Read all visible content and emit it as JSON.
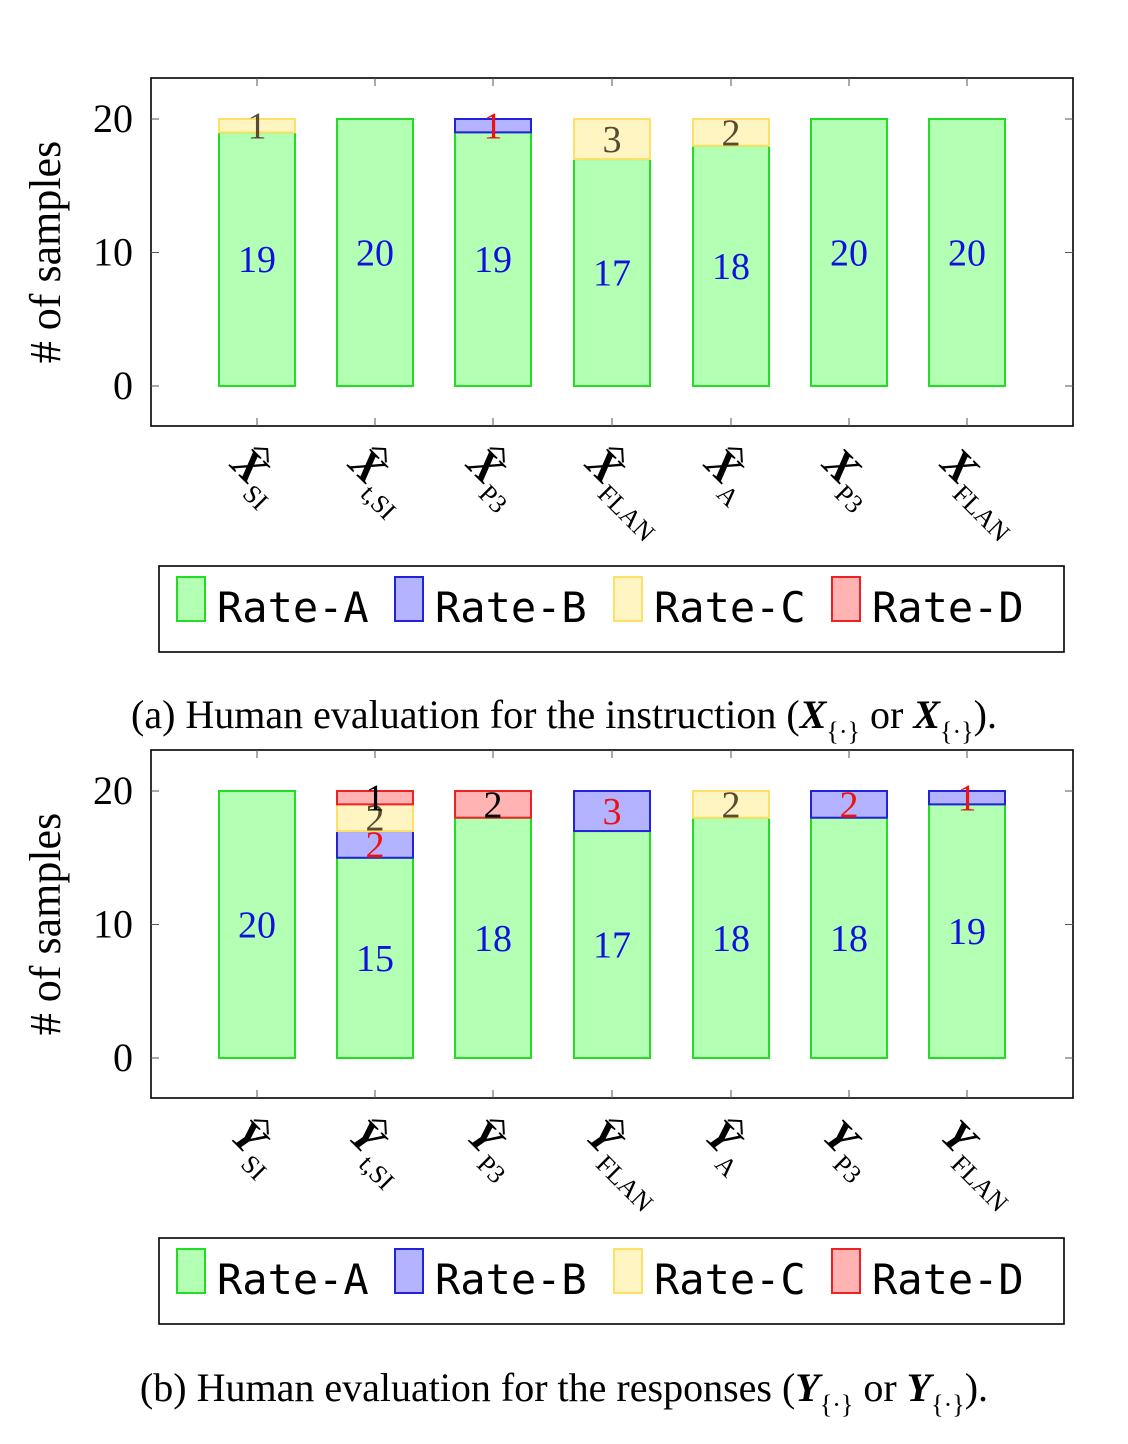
{
  "chart_data": [
    {
      "type": "bar",
      "stacked": true,
      "ylabel": "# of samples",
      "yticks": [
        0,
        10,
        20
      ],
      "ylim": [
        -3,
        23
      ],
      "categories": [
        {
          "base": "X",
          "hat": true,
          "sub": "SI"
        },
        {
          "base": "X",
          "hat": true,
          "sub": "t,SI"
        },
        {
          "base": "X",
          "hat": true,
          "sub": "P3"
        },
        {
          "base": "X",
          "hat": true,
          "sub": "FLAN"
        },
        {
          "base": "X",
          "hat": true,
          "sub": "A"
        },
        {
          "base": "X",
          "hat": false,
          "sub": "P3"
        },
        {
          "base": "X",
          "hat": false,
          "sub": "FLAN"
        }
      ],
      "series": [
        {
          "name": "Rate-A",
          "values": [
            19,
            20,
            19,
            17,
            18,
            20,
            20
          ]
        },
        {
          "name": "Rate-B",
          "values": [
            0,
            0,
            1,
            0,
            0,
            0,
            0
          ]
        },
        {
          "name": "Rate-C",
          "values": [
            1,
            0,
            0,
            3,
            2,
            0,
            0
          ]
        },
        {
          "name": "Rate-D",
          "values": [
            0,
            0,
            0,
            0,
            0,
            0,
            0
          ]
        }
      ],
      "legend_position": "below",
      "grid": false,
      "caption": {
        "prefix": "(a) Human evaluation for the instruction (",
        "var": "X",
        "sub": "{·}",
        "mid": " or ",
        "var2": "X",
        "sub2": "{·}",
        "suffix": ")."
      }
    },
    {
      "type": "bar",
      "stacked": true,
      "ylabel": "# of samples",
      "yticks": [
        0,
        10,
        20
      ],
      "ylim": [
        -3,
        23
      ],
      "categories": [
        {
          "base": "Y",
          "hat": true,
          "sub": "SI"
        },
        {
          "base": "Y",
          "hat": true,
          "sub": "t,SI"
        },
        {
          "base": "Y",
          "hat": true,
          "sub": "P3"
        },
        {
          "base": "Y",
          "hat": true,
          "sub": "FLAN"
        },
        {
          "base": "Y",
          "hat": true,
          "sub": "A"
        },
        {
          "base": "Y",
          "hat": false,
          "sub": "P3"
        },
        {
          "base": "Y",
          "hat": false,
          "sub": "FLAN"
        }
      ],
      "series": [
        {
          "name": "Rate-A",
          "values": [
            20,
            15,
            18,
            17,
            18,
            18,
            19
          ]
        },
        {
          "name": "Rate-B",
          "values": [
            0,
            2,
            0,
            3,
            0,
            2,
            1
          ]
        },
        {
          "name": "Rate-C",
          "values": [
            0,
            2,
            0,
            0,
            2,
            0,
            0
          ]
        },
        {
          "name": "Rate-D",
          "values": [
            0,
            1,
            2,
            0,
            0,
            0,
            0
          ]
        }
      ],
      "legend_position": "below",
      "grid": false,
      "caption": {
        "prefix": "(b) Human evaluation for the responses (",
        "var": "Y",
        "sub": "{·}",
        "mid": " or ",
        "var2": "Y",
        "sub2": "{·}",
        "suffix": ")."
      }
    }
  ],
  "series_style": {
    "Rate-A": {
      "fill": "#b3ffb3",
      "stroke": "#22dd22",
      "label_color": "#1111dd"
    },
    "Rate-B": {
      "fill": "#b3b3ff",
      "stroke": "#2222dd",
      "label_color": "#ee1111"
    },
    "Rate-C": {
      "fill": "#fff5c2",
      "stroke": "#ffe066",
      "label_color": "#5a4a30"
    },
    "Rate-D": {
      "fill": "#ffb3b3",
      "stroke": "#ee2222",
      "label_color": "#000000"
    }
  }
}
